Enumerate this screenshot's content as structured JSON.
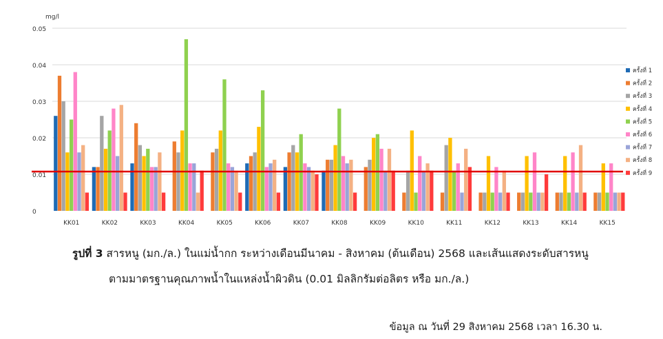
{
  "chart_data": {
    "type": "bar",
    "ylabel": "mg/l",
    "ylim": [
      0,
      0.05
    ],
    "yticks": [
      "0.05",
      "0.04",
      "0.03",
      "0.02",
      "0.01",
      "0"
    ],
    "grid": true,
    "legend_position": "right",
    "categories": [
      "KK01",
      "KK02",
      "KK03",
      "KK04",
      "KK05",
      "KK06",
      "KK07",
      "KK08",
      "KK09",
      "KK10",
      "KK11",
      "KK12",
      "KK13",
      "KK14",
      "KK15"
    ],
    "series": [
      {
        "name": "ครั้งที่ 1",
        "color": "#1f6bb5",
        "values": [
          0.026,
          0.012,
          0.013,
          null,
          null,
          0.013,
          0.012,
          0.011,
          null,
          null,
          null,
          null,
          null,
          null,
          null
        ]
      },
      {
        "name": "ครั้งที่ 2",
        "color": "#ed7d31",
        "values": [
          0.037,
          0.012,
          0.024,
          0.019,
          0.016,
          0.015,
          0.016,
          0.014,
          0.012,
          0.005,
          0.005,
          0.005,
          0.005,
          0.005,
          0.005
        ]
      },
      {
        "name": "ครั้งที่ 3",
        "color": "#a5a5a5",
        "values": [
          0.03,
          0.026,
          0.018,
          0.016,
          0.017,
          0.016,
          0.018,
          0.014,
          0.014,
          0.011,
          0.018,
          0.005,
          0.005,
          0.005,
          0.005
        ]
      },
      {
        "name": "ครั้งที่ 4",
        "color": "#ffc000",
        "values": [
          0.016,
          0.017,
          0.015,
          0.022,
          0.022,
          0.023,
          0.016,
          0.018,
          0.02,
          0.022,
          0.02,
          0.015,
          0.015,
          0.015,
          0.013
        ]
      },
      {
        "name": "ครั้งที่ 5",
        "color": "#8fd14f",
        "values": [
          0.025,
          0.022,
          0.017,
          0.047,
          0.036,
          0.033,
          0.021,
          0.028,
          0.021,
          0.005,
          0.011,
          0.005,
          0.005,
          0.005,
          0.005
        ]
      },
      {
        "name": "ครั้งที่ 6",
        "color": "#ff85c8",
        "values": [
          0.038,
          0.028,
          0.012,
          0.013,
          0.013,
          0.012,
          0.013,
          0.015,
          0.017,
          0.015,
          0.013,
          0.012,
          0.016,
          0.016,
          0.013
        ]
      },
      {
        "name": "ครั้งที่ 7",
        "color": "#9aa4d8",
        "values": [
          0.016,
          0.015,
          0.012,
          0.013,
          0.012,
          0.013,
          0.012,
          0.013,
          0.011,
          0.011,
          0.005,
          0.005,
          0.005,
          0.005,
          0.005
        ]
      },
      {
        "name": "ครั้งที่ 8",
        "color": "#f4b183",
        "values": [
          0.018,
          0.029,
          0.016,
          0.005,
          0.011,
          0.014,
          0.011,
          0.014,
          0.017,
          0.013,
          0.017,
          0.011,
          0.005,
          0.018,
          0.005
        ]
      },
      {
        "name": "ครั้งที่ 9",
        "color": "#ff3b3b",
        "values": [
          0.005,
          0.005,
          0.005,
          0.011,
          0.005,
          0.005,
          0.01,
          0.005,
          0.011,
          0.011,
          0.012,
          0.005,
          0.01,
          0.005,
          0.005
        ]
      }
    ],
    "standard_line": {
      "value": 0.01,
      "color": "#e00000"
    }
  },
  "caption": {
    "label": "รูปที่ 3",
    "line1": "สารหนู (มก./ล.) ในแม่น้ำกก ระหว่างเดือนมีนาคม - สิงหาคม (ต้นเดือน) 2568 และเส้นแสดงระดับสารหนู",
    "line2": "ตามมาตรฐานคุณภาพน้ำในแหล่งน้ำผิวดิน (0.01 มิลลิกรัมต่อลิตร หรือ มก./ล.)"
  },
  "note": "ข้อมูล ณ วันที่ 29 สิงหาคม 2568 เวลา 16.30 น."
}
